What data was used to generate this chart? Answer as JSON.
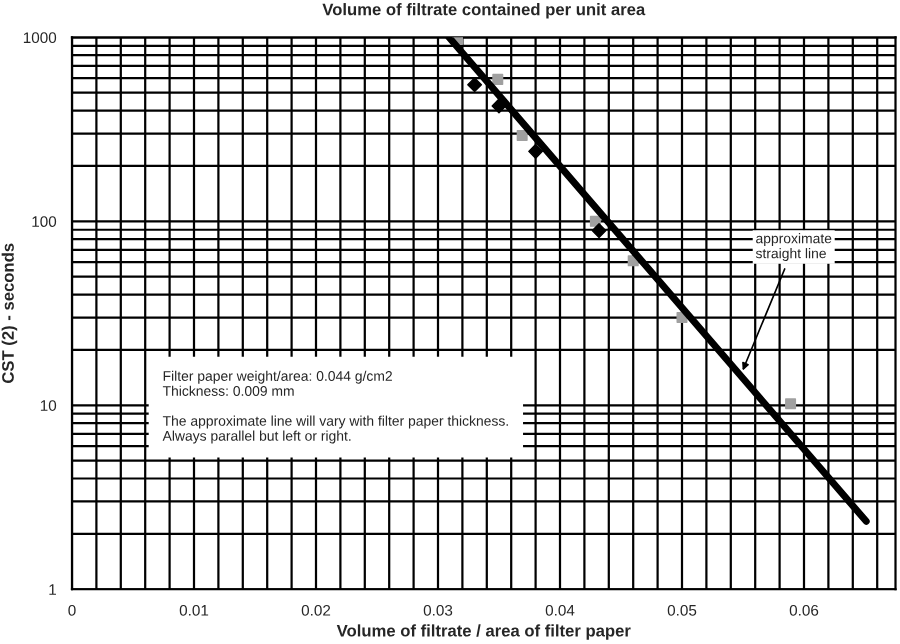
{
  "chart_data": {
    "type": "scatter",
    "title": "Volume of filtrate contained per unit area",
    "xlabel": "Volume of filtrate / area of filter paper",
    "ylabel": "CST (2) - seconds",
    "log": "y",
    "xlim": [
      0,
      0.0675
    ],
    "xticks": [
      0,
      0.01,
      0.02,
      0.03,
      0.04,
      0.05,
      0.06
    ],
    "ylim": [
      1,
      1000
    ],
    "yticks": [
      1,
      10,
      100,
      1000
    ],
    "grid": true,
    "series": [
      {
        "color": "#a0a0a0",
        "marker": "square",
        "x": [
          0.0316,
          0.0349,
          0.0369,
          0.0429,
          0.046,
          0.05,
          0.0589
        ],
        "values": [
          975,
          591,
          293,
          100,
          61,
          30,
          10.2
        ]
      },
      {
        "color": "#000000",
        "marker": "diamond",
        "x": [
          0.033,
          0.035,
          0.038,
          0.0432
        ],
        "values": [
          553,
          424,
          240,
          89
        ]
      },
      {
        "type": "line",
        "color": "#000000",
        "marker": "none",
        "line_style": "solid",
        "x": [
          0.0309,
          0.0651
        ],
        "values": [
          1000,
          2.34
        ]
      }
    ],
    "annotations": [
      "Filter paper weight/area: 0.044 g/cm2\nThickness: 0.009 mm\n\nThe approximate line will vary with filter paper thickness.\nAlways parallel but left or right.",
      {
        "text": "approximate\nstraight line",
        "x": 0.0548,
        "y": 14.5
      }
    ]
  }
}
